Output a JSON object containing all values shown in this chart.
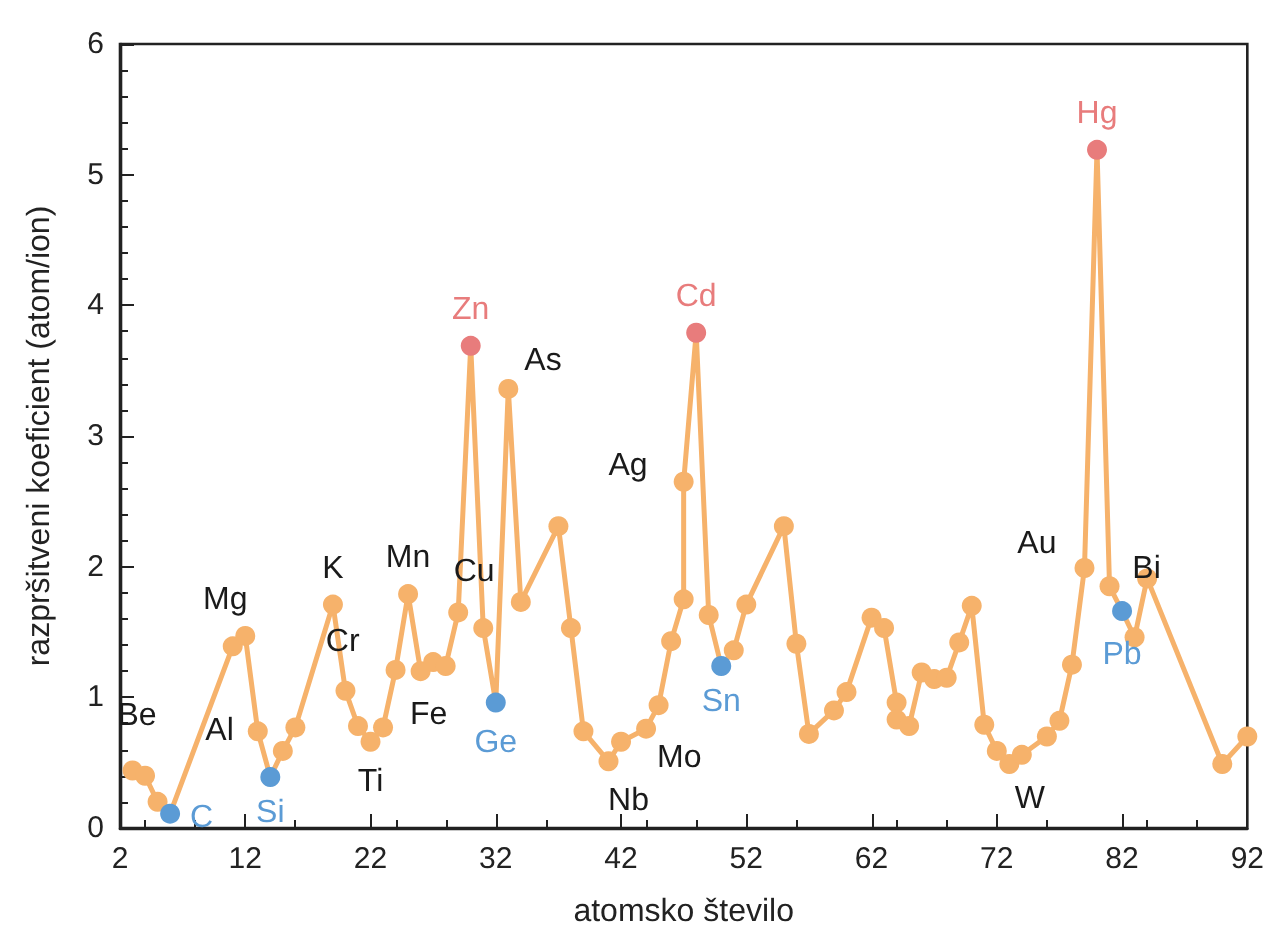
{
  "chart_data": {
    "type": "line",
    "xlabel": "atomsko število",
    "ylabel": "razpršitveni koeficient (atom/ion)",
    "x": [
      3,
      4,
      5,
      6,
      11,
      12,
      13,
      14,
      15,
      16,
      19,
      20,
      21,
      22,
      23,
      24,
      25,
      26,
      27,
      28,
      29,
      30,
      31,
      32,
      33,
      34,
      37,
      38,
      39,
      41,
      42,
      44,
      45,
      46,
      47,
      47,
      48,
      49,
      50,
      51,
      52,
      55,
      56,
      57,
      59,
      60,
      62,
      63,
      64,
      64,
      65,
      66,
      67,
      68,
      69,
      70,
      71,
      72,
      73,
      74,
      76,
      77,
      78,
      79,
      80,
      81,
      82,
      83,
      84,
      90,
      92
    ],
    "series": [
      {
        "color": "#f6b26b",
        "values": [
          0.44,
          0.4,
          0.2,
          0.11,
          1.39,
          1.47,
          0.74,
          0.39,
          0.59,
          0.77,
          1.71,
          1.05,
          0.78,
          0.66,
          0.77,
          1.21,
          1.79,
          1.2,
          1.27,
          1.24,
          1.65,
          3.69,
          1.53,
          0.96,
          3.36,
          1.73,
          2.31,
          1.53,
          0.74,
          0.51,
          0.66,
          0.76,
          0.94,
          1.43,
          1.75,
          2.65,
          3.79,
          1.63,
          1.24,
          1.36,
          1.71,
          2.31,
          1.41,
          0.72,
          0.9,
          1.04,
          1.61,
          1.53,
          0.96,
          0.83,
          0.78,
          1.19,
          1.14,
          1.15,
          1.42,
          1.7,
          0.79,
          0.59,
          0.49,
          0.56,
          0.7,
          0.82,
          1.25,
          1.99,
          5.19,
          1.85,
          1.66,
          1.46,
          1.91,
          0.49,
          0.7
        ],
        "colors": [
          "#f6b26b",
          "#f6b26b",
          "#f6b26b",
          "#5b9bd5",
          "#f6b26b",
          "#f6b26b",
          "#f6b26b",
          "#5b9bd5",
          "#f6b26b",
          "#f6b26b",
          "#f6b26b",
          "#f6b26b",
          "#f6b26b",
          "#f6b26b",
          "#f6b26b",
          "#f6b26b",
          "#f6b26b",
          "#f6b26b",
          "#f6b26b",
          "#f6b26b",
          "#f6b26b",
          "#e87c7c",
          "#f6b26b",
          "#5b9bd5",
          "#f6b26b",
          "#f6b26b",
          "#f6b26b",
          "#f6b26b",
          "#f6b26b",
          "#f6b26b",
          "#f6b26b",
          "#f6b26b",
          "#f6b26b",
          "#f6b26b",
          "#f6b26b",
          "#f6b26b",
          "#e87c7c",
          "#f6b26b",
          "#5b9bd5",
          "#f6b26b",
          "#f6b26b",
          "#f6b26b",
          "#f6b26b",
          "#f6b26b",
          "#f6b26b",
          "#f6b26b",
          "#f6b26b",
          "#f6b26b",
          "#f6b26b",
          "#f6b26b",
          "#f6b26b",
          "#f6b26b",
          "#f6b26b",
          "#f6b26b",
          "#f6b26b",
          "#f6b26b",
          "#f6b26b",
          "#f6b26b",
          "#f6b26b",
          "#f6b26b",
          "#f6b26b",
          "#f6b26b",
          "#f6b26b",
          "#f6b26b",
          "#e87c7c",
          "#f6b26b",
          "#5b9bd5",
          "#f6b26b",
          "#f6b26b",
          "#f6b26b",
          "#f6b26b"
        ]
      }
    ],
    "xlim": [
      2,
      92
    ],
    "xticks": [
      2,
      12,
      22,
      32,
      42,
      52,
      62,
      72,
      82,
      92
    ],
    "ylim": [
      0,
      6
    ],
    "yticks": [
      0,
      1,
      2,
      3,
      4,
      5,
      6
    ],
    "marker": "circle",
    "line_style": "solid",
    "grid": false,
    "annotations": [
      {
        "text": "Be",
        "x": 4,
        "y": 0.4
      },
      {
        "text": "C",
        "x": 6,
        "y": 0.11
      },
      {
        "text": "Mg",
        "x": 12,
        "y": 1.47
      },
      {
        "text": "Al",
        "x": 13,
        "y": 0.74
      },
      {
        "text": "Si",
        "x": 14,
        "y": 0.39
      },
      {
        "text": "K",
        "x": 19,
        "y": 1.71
      },
      {
        "text": "Ti",
        "x": 22,
        "y": 0.66
      },
      {
        "text": "Cr",
        "x": 24,
        "y": 1.21
      },
      {
        "text": "Mn",
        "x": 25,
        "y": 1.79
      },
      {
        "text": "Fe",
        "x": 26,
        "y": 1.2
      },
      {
        "text": "Cu",
        "x": 29,
        "y": 1.65
      },
      {
        "text": "Zn",
        "x": 30,
        "y": 3.69
      },
      {
        "text": "Ge",
        "x": 32,
        "y": 0.96
      },
      {
        "text": "As",
        "x": 33,
        "y": 3.36
      },
      {
        "text": "Nb",
        "x": 41,
        "y": 0.51
      },
      {
        "text": "Mo",
        "x": 42,
        "y": 0.66
      },
      {
        "text": "Ag",
        "x": 47,
        "y": 2.65
      },
      {
        "text": "Cd",
        "x": 48,
        "y": 3.79
      },
      {
        "text": "Sn",
        "x": 50,
        "y": 1.24
      },
      {
        "text": "W",
        "x": 74,
        "y": 0.56
      },
      {
        "text": "Au",
        "x": 79,
        "y": 1.99
      },
      {
        "text": "Hg",
        "x": 80,
        "y": 5.19
      },
      {
        "text": "Pb",
        "x": 82,
        "y": 1.66
      },
      {
        "text": "Bi",
        "x": 83,
        "y": 1.46
      }
    ]
  }
}
